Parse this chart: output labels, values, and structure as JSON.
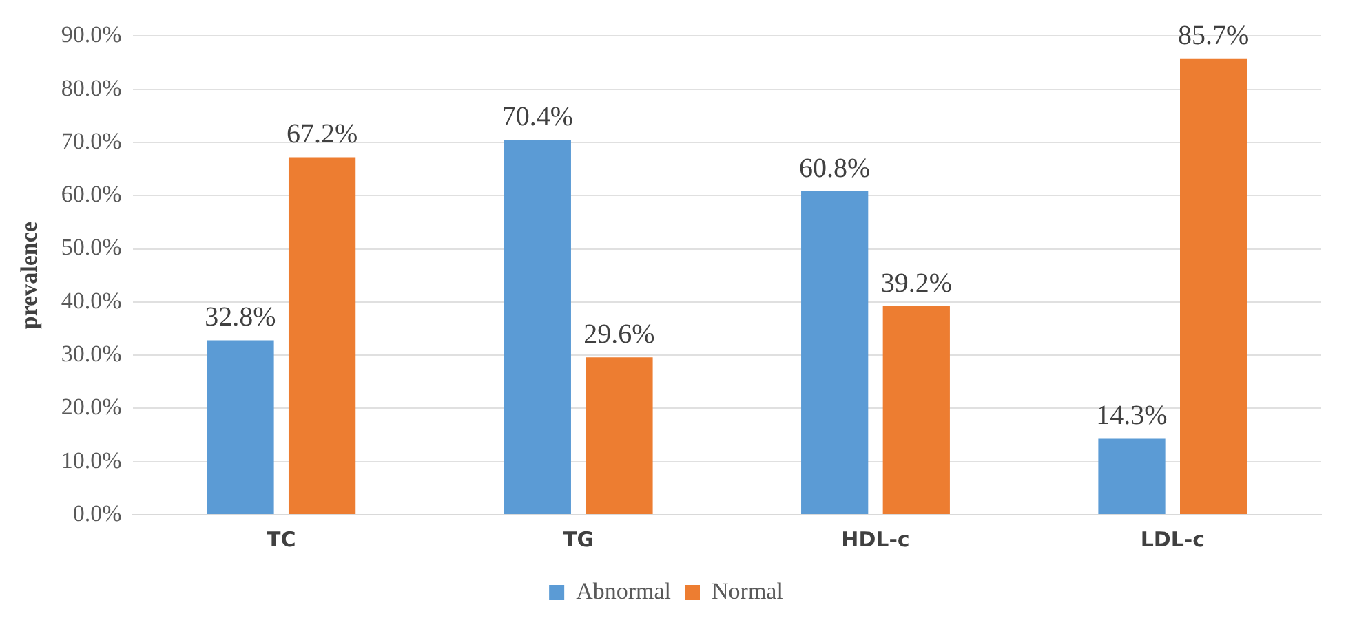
{
  "chart_data": {
    "type": "bar",
    "ylabel": "prevalence",
    "categories": [
      "TC",
      "TG",
      "HDL-c",
      "LDL-c"
    ],
    "series": [
      {
        "name": "Abnormal",
        "color": "#5b9bd5",
        "values": [
          32.8,
          70.4,
          60.8,
          14.3
        ],
        "value_labels": [
          "32.8%",
          "70.4%",
          "60.8%",
          "14.3%"
        ]
      },
      {
        "name": "Normal",
        "color": "#ed7d31",
        "values": [
          67.2,
          29.6,
          39.2,
          85.7
        ],
        "value_labels": [
          "67.2%",
          "29.6%",
          "39.2%",
          "85.7%"
        ]
      }
    ],
    "ylim": [
      0,
      90
    ],
    "yticks": [
      {
        "value": 0,
        "label": "0.0%"
      },
      {
        "value": 10,
        "label": "10.0%"
      },
      {
        "value": 20,
        "label": "20.0%"
      },
      {
        "value": 30,
        "label": "30.0%"
      },
      {
        "value": 40,
        "label": "40.0%"
      },
      {
        "value": 50,
        "label": "50.0%"
      },
      {
        "value": 60,
        "label": "60.0%"
      },
      {
        "value": 70,
        "label": "70.0%"
      },
      {
        "value": 80,
        "label": "80.0%"
      },
      {
        "value": 90,
        "label": "90.0%"
      }
    ],
    "grid": "y",
    "legend": "bottom"
  }
}
